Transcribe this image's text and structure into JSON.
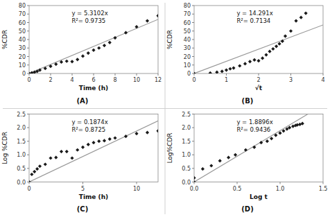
{
  "chart_data": [
    {
      "type": "scatter",
      "title": "(A)",
      "xlabel": "Time (h)",
      "ylabel": "%CDR",
      "annotations": [
        "y = 5.3102x",
        "R²= 0.9735"
      ],
      "trend_slope": 5.3102,
      "color": "#1a1a1a",
      "marker": "diamond",
      "grid": false,
      "xlim": [
        0,
        12
      ],
      "ylim": [
        0,
        80
      ],
      "xticks": [
        0,
        2,
        4,
        6,
        8,
        10,
        12
      ],
      "yticks": [
        0,
        10,
        20,
        30,
        40,
        50,
        60,
        70,
        80
      ],
      "x": [
        0,
        0.25,
        0.5,
        0.75,
        1.0,
        1.5,
        2.0,
        2.5,
        3.0,
        3.5,
        4.0,
        4.5,
        5.0,
        5.5,
        6.0,
        6.5,
        7.0,
        7.5,
        8.0,
        9.0,
        10.0,
        11.0,
        12.0
      ],
      "values": [
        0,
        0.8,
        1.5,
        2.5,
        4.0,
        6.0,
        8.5,
        11.0,
        13.5,
        14.5,
        14.0,
        16.5,
        20.5,
        24.0,
        27.5,
        30.0,
        33.0,
        36.5,
        42.0,
        48.0,
        55.0,
        62.0,
        68.0
      ]
    },
    {
      "type": "scatter",
      "title": "(B)",
      "xlabel": "√t",
      "ylabel": "%CDR",
      "annotations": [
        "y = 14.291x",
        "R²= 0.7134"
      ],
      "trend_slope": 14.291,
      "color": "#1a1a1a",
      "marker": "diamond",
      "grid": false,
      "xlim": [
        0,
        4
      ],
      "ylim": [
        0,
        80
      ],
      "xticks": [
        0,
        1,
        2,
        3,
        4
      ],
      "yticks": [
        0,
        10,
        20,
        30,
        40,
        50,
        60,
        70,
        80
      ],
      "x": [
        0,
        0.5,
        0.707,
        0.866,
        1.0,
        1.118,
        1.225,
        1.414,
        1.581,
        1.732,
        1.871,
        2.0,
        2.121,
        2.236,
        2.345,
        2.449,
        2.55,
        2.646,
        2.739,
        2.828,
        3.0,
        3.162,
        3.317,
        3.464
      ],
      "values": [
        0,
        0.5,
        1.5,
        2.5,
        4.0,
        5.5,
        6.5,
        9.0,
        11.5,
        14.0,
        16.0,
        15.0,
        18.0,
        22.0,
        26.0,
        29.0,
        32.0,
        35.0,
        38.0,
        44.0,
        50.0,
        62.0,
        66.0,
        71.0
      ]
    },
    {
      "type": "scatter",
      "title": "(C)",
      "xlabel": "Time (h)",
      "ylabel": "Log %CDR",
      "annotations": [
        "y = 0.1874x",
        "R²= 0.8725"
      ],
      "trend_slope": 0.1874,
      "color": "#1a1a1a",
      "marker": "diamond",
      "grid": false,
      "xlim": [
        0,
        12
      ],
      "ylim": [
        0,
        2.5
      ],
      "xticks": [
        0,
        5,
        10
      ],
      "yticks": [
        {
          "value": 0,
          "label": "0.0"
        },
        0.5,
        {
          "value": 1.0,
          "label": "1.0"
        },
        1.5,
        {
          "value": 2.0,
          "label": "2.0"
        },
        2.5
      ],
      "x": [
        0,
        0.25,
        0.5,
        0.75,
        1.0,
        1.5,
        2.0,
        2.5,
        3.0,
        3.5,
        4.0,
        4.5,
        5.0,
        5.5,
        6.0,
        6.5,
        7.0,
        7.5,
        8.0,
        9.0,
        10.0,
        11.0,
        12.0
      ],
      "values": [
        0,
        0.28,
        0.38,
        0.48,
        0.58,
        0.65,
        0.88,
        0.9,
        1.12,
        1.12,
        0.88,
        1.18,
        1.28,
        1.38,
        1.45,
        1.5,
        1.52,
        1.58,
        1.62,
        1.68,
        1.78,
        1.82,
        1.88
      ]
    },
    {
      "type": "scatter",
      "title": "(D)",
      "xlabel": "Log t",
      "ylabel": "Log%CDR",
      "annotations": [
        "y = 1.8896x",
        "R²= 0.9436"
      ],
      "trend_slope": 1.8896,
      "color": "#1a1a1a",
      "marker": "diamond",
      "grid": false,
      "xlim": [
        0,
        1.5
      ],
      "ylim": [
        0,
        2.5
      ],
      "xticks": [
        {
          "value": 0,
          "label": "0.0"
        },
        0.5,
        {
          "value": 1.0,
          "label": "1.0"
        },
        1.5
      ],
      "yticks": [
        {
          "value": 0,
          "label": "0.0"
        },
        0.5,
        {
          "value": 1.0,
          "label": "1.0"
        },
        1.5,
        {
          "value": 2.0,
          "label": "2.0"
        },
        2.5
      ],
      "x": [
        0,
        0.0,
        0.1,
        0.2,
        0.3,
        0.4,
        0.48,
        0.6,
        0.7,
        0.78,
        0.85,
        0.9,
        0.95,
        1.0,
        1.04,
        1.08,
        1.11,
        1.15,
        1.18,
        1.2,
        1.23,
        1.26
      ],
      "values": [
        0,
        0.15,
        0.48,
        0.6,
        0.78,
        0.9,
        1.0,
        1.18,
        1.28,
        1.45,
        1.5,
        1.6,
        1.72,
        1.8,
        1.88,
        1.95,
        2.0,
        2.05,
        2.08,
        2.1,
        2.12,
        2.15
      ]
    }
  ]
}
